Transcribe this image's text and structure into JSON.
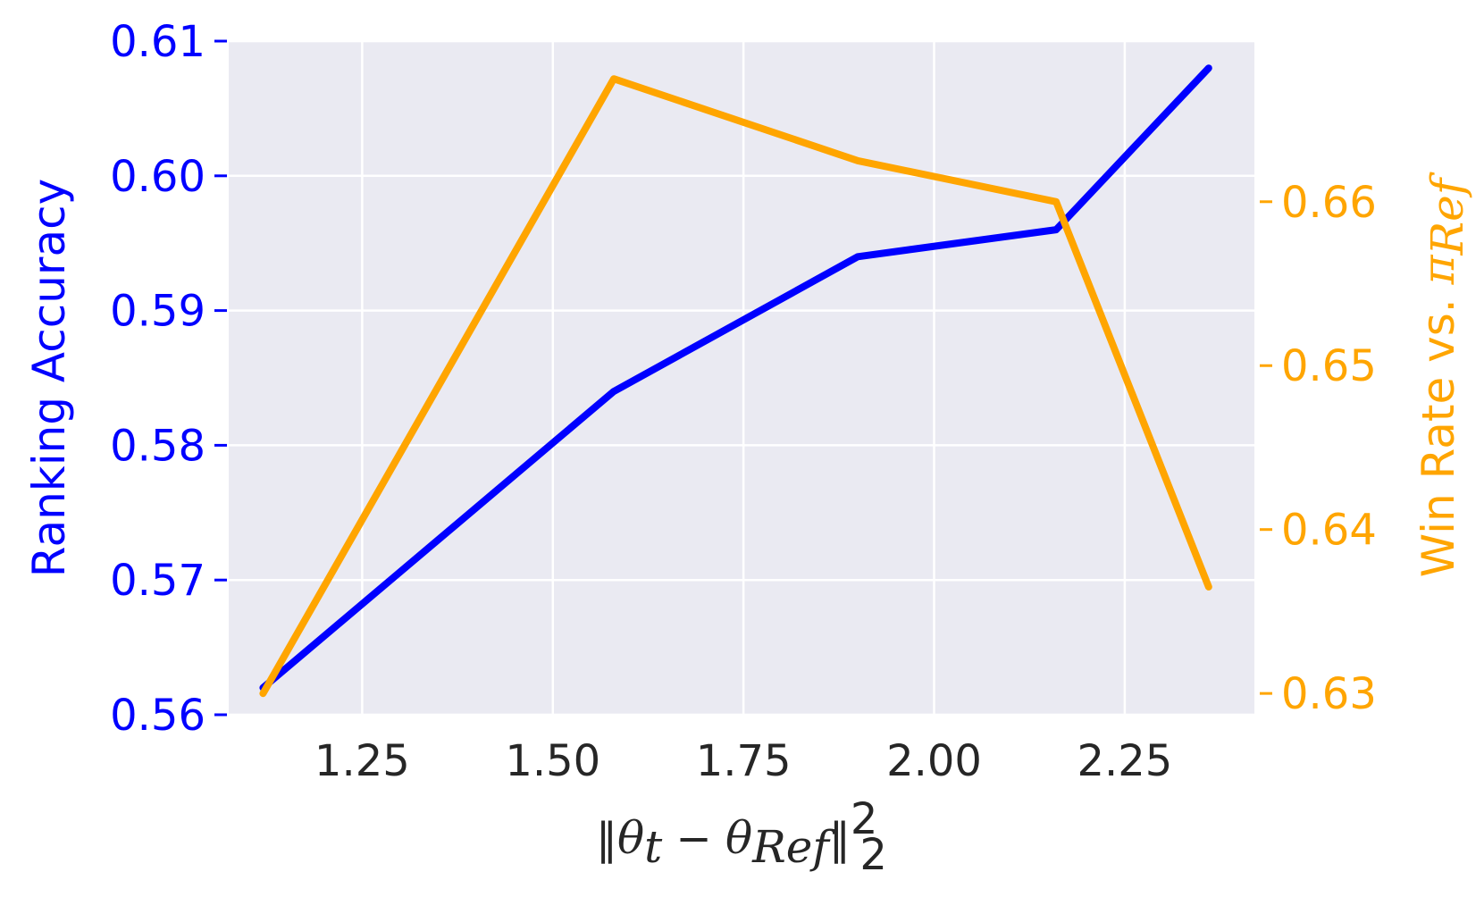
{
  "chart_data": {
    "type": "line",
    "xlabel": "‖θt − θRef‖²₂",
    "xlabel_parts": {
      "norm": "‖",
      "theta": "θ",
      "sub_t": "t",
      "minus": " − ",
      "sub_ref": "Ref",
      "sup": "2",
      "sub2": "2"
    },
    "xlim": [
      1.075,
      2.42
    ],
    "x_ticks": [
      1.25,
      1.5,
      1.75,
      2.0,
      2.25
    ],
    "x_tick_labels": [
      "1.25",
      "1.50",
      "1.75",
      "2.00",
      "2.25"
    ],
    "left_axis": {
      "label": "Ranking Accuracy",
      "color": "#0000ff",
      "ylim": [
        0.56,
        0.61
      ],
      "ticks": [
        0.56,
        0.57,
        0.58,
        0.59,
        0.6,
        0.61
      ],
      "tick_labels": [
        "0.56",
        "0.57",
        "0.58",
        "0.59",
        "0.60",
        "0.61"
      ]
    },
    "right_axis": {
      "label": "Win Rate vs. πRef",
      "label_text": "Win Rate vs. ",
      "label_pi": "π",
      "label_sub": "Ref",
      "color": "#ffa500",
      "ylim": [
        0.6287,
        0.6698
      ],
      "ticks": [
        0.63,
        0.64,
        0.65,
        0.66
      ],
      "tick_labels": [
        "0.63",
        "0.64",
        "0.65",
        "0.66"
      ]
    },
    "series": [
      {
        "axis": "left",
        "color": "#0000ff",
        "x": [
          1.12,
          1.58,
          1.9,
          2.16,
          2.36
        ],
        "y": [
          0.562,
          0.584,
          0.594,
          0.596,
          0.608
        ]
      },
      {
        "axis": "right",
        "color": "#ffa500",
        "x": [
          1.12,
          1.58,
          1.9,
          2.16,
          2.36
        ],
        "y": [
          0.63,
          0.6675,
          0.6625,
          0.66,
          0.6365
        ]
      }
    ],
    "background": "#eaeaf2",
    "grid": true
  }
}
